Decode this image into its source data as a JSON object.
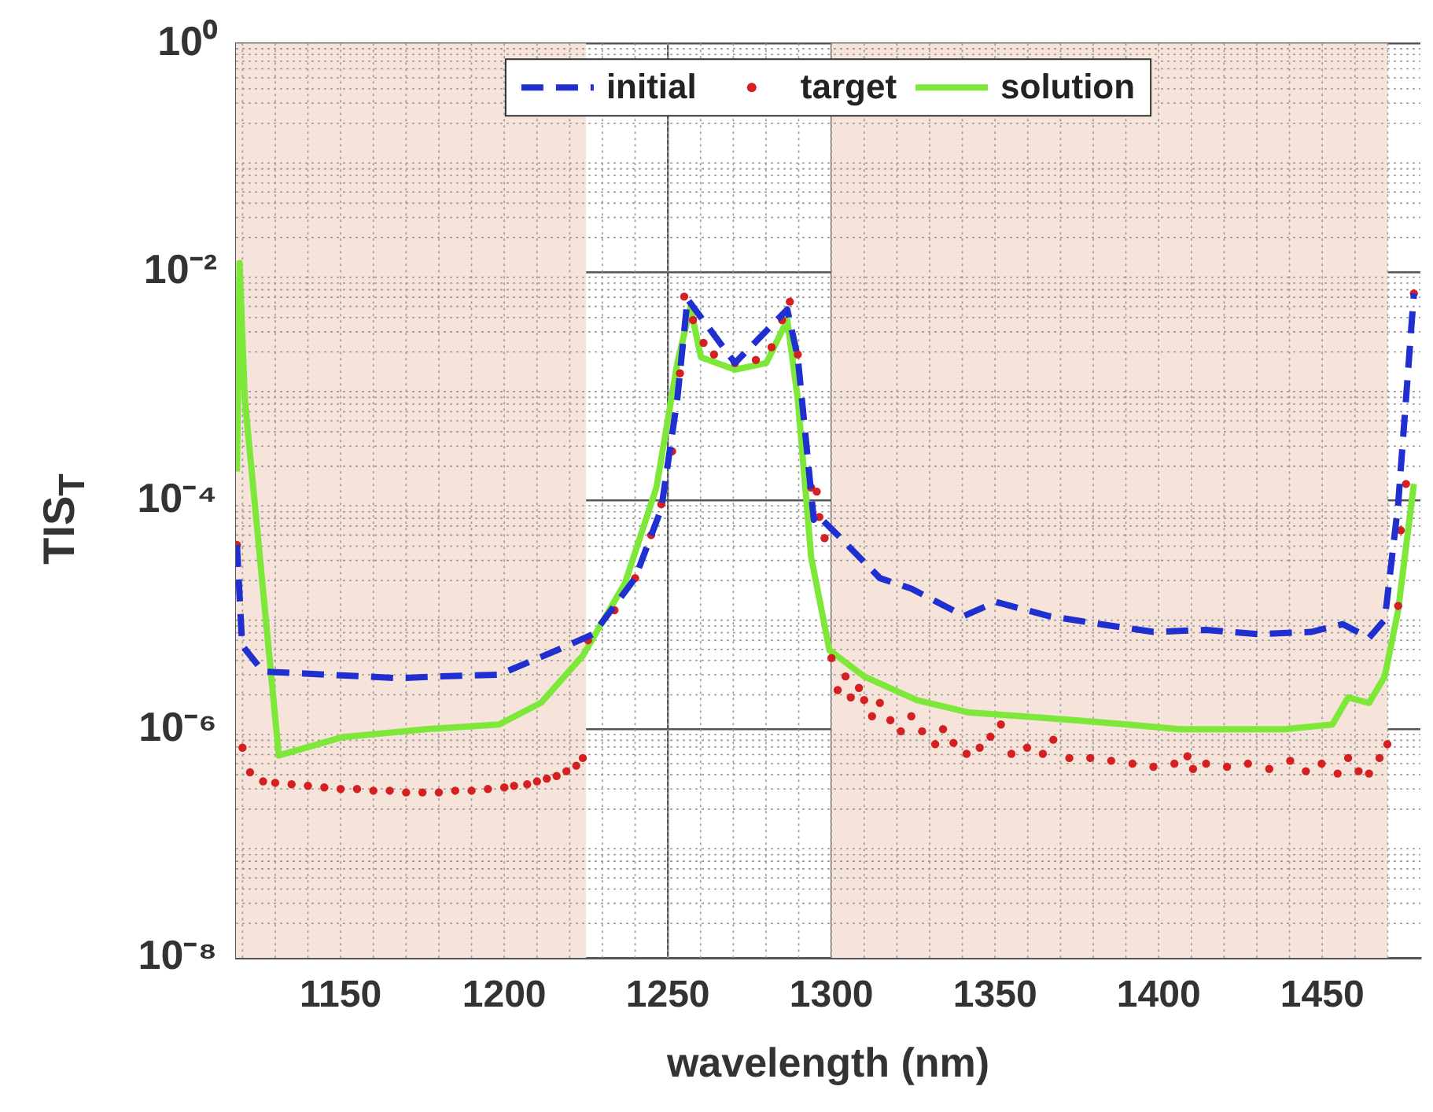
{
  "chart_data": {
    "type": "line",
    "xlabel": "wavelength (nm)",
    "ylabel": "TIS$_{T}$",
    "log": "y",
    "grid": true,
    "legend": "top",
    "xlim": [
      1118,
      1480
    ],
    "xticks": [
      1150,
      1200,
      1250,
      1300,
      1350,
      1400,
      1450
    ],
    "ylim": [
      1e-08,
      1
    ],
    "yticks": [
      {
        "value": 1e-08,
        "label": "10⁻⁸"
      },
      {
        "value": 1e-06,
        "label": "10⁻⁶"
      },
      {
        "value": 0.0001,
        "label": "10⁻⁴"
      },
      {
        "value": 0.01,
        "label": "10⁻²"
      },
      {
        "value": 1,
        "label": "10⁰"
      }
    ],
    "bands": [
      {
        "axis": "x",
        "from": 1118,
        "to": 1225,
        "color": "#f6e3da"
      },
      {
        "axis": "x",
        "from": 1300,
        "to": 1470,
        "color": "#f6e3da"
      }
    ],
    "series": [
      {
        "name": "initial",
        "type": "line",
        "line_style": "dashed",
        "marker": "none",
        "color": "#1f2fd0",
        "x": [
          1118.3,
          1119.9,
          1126.3,
          1168,
          1180.8,
          1198.4,
          1216,
          1227.2,
          1240,
          1248,
          1252.9,
          1256,
          1270.5,
          1286.5,
          1289.7,
          1294.6,
          1295.5,
          1301.9,
          1314.8,
          1324.4,
          1340.5,
          1350.2,
          1366.2,
          1382.3,
          1398.4,
          1414.5,
          1430.5,
          1446.6,
          1456.3,
          1464.3,
          1469.1,
          1473.2,
          1475.6,
          1478
        ],
        "values": [
          4.1e-05,
          5.4e-06,
          3.2e-06,
          2.8e-06,
          2.9e-06,
          3e-06,
          4.9e-06,
          6.8e-06,
          2.1e-05,
          8.5e-05,
          0.00078,
          0.0058,
          0.0016,
          0.0047,
          0.0018,
          6.8e-05,
          7.6e-05,
          5e-05,
          2.1e-05,
          1.7e-05,
          9.8e-06,
          1.3e-05,
          9.8e-06,
          8.3e-06,
          7.1e-06,
          7.4e-06,
          6.8e-06,
          7.1e-06,
          8.3e-06,
          6.3e-06,
          9.1e-06,
          9.3e-05,
          0.00078,
          0.0065
        ]
      },
      {
        "name": "target",
        "type": "scatter",
        "marker": "circle",
        "color": "#d42020",
        "x": [
          1118.3,
          1120,
          1122.3,
          1126.3,
          1130,
          1135,
          1140,
          1145,
          1150,
          1155,
          1160,
          1165,
          1170,
          1175,
          1180,
          1185,
          1190,
          1195,
          1200,
          1203,
          1207,
          1210,
          1213,
          1216,
          1219,
          1222,
          1224,
          1225.6,
          1233.7,
          1240,
          1244.9,
          1248,
          1251.3,
          1253.7,
          1255,
          1257.7,
          1260.9,
          1264.1,
          1270.5,
          1276.9,
          1281.7,
          1284.9,
          1287.3,
          1289.7,
          1293.8,
          1295.5,
          1296.3,
          1297.9,
          1300,
          1301.9,
          1304.3,
          1305.9,
          1308.4,
          1310,
          1312.4,
          1314.8,
          1318,
          1321.2,
          1324.4,
          1327.7,
          1331.7,
          1334.1,
          1337.3,
          1341.3,
          1345.3,
          1348.6,
          1351.8,
          1355,
          1359.8,
          1364.6,
          1367.8,
          1372.7,
          1379.1,
          1385.5,
          1392,
          1398.4,
          1404.8,
          1408.8,
          1410.5,
          1414.5,
          1420.9,
          1427.3,
          1433.8,
          1440.2,
          1445,
          1449.8,
          1454.7,
          1457.9,
          1461.1,
          1464.3,
          1467.5,
          1469.9,
          1473.2,
          1474,
          1475.6,
          1478
        ],
        "values": [
          4.1e-05,
          6.9e-07,
          4.2e-07,
          3.5e-07,
          3.4e-07,
          3.3e-07,
          3.2e-07,
          3.1e-07,
          3e-07,
          3e-07,
          2.9e-07,
          2.9e-07,
          2.8e-07,
          2.8e-07,
          2.8e-07,
          2.9e-07,
          2.9e-07,
          3e-07,
          3.1e-07,
          3.2e-07,
          3.3e-07,
          3.5e-07,
          3.7e-07,
          3.9e-07,
          4.3e-07,
          4.8e-07,
          5.6e-07,
          6e-06,
          1.1e-05,
          2.1e-05,
          5e-05,
          9.3e-05,
          0.00027,
          0.0013,
          0.0061,
          0.0038,
          0.0024,
          0.0019,
          0.0016,
          0.0017,
          0.0022,
          0.0038,
          0.0055,
          0.0019,
          0.00013,
          0.00012,
          7.2e-05,
          4.7e-05,
          4.2e-06,
          2.2e-06,
          2.9e-06,
          1.9e-06,
          2.3e-06,
          1.8e-06,
          1.3e-06,
          1.7e-06,
          1.2e-06,
          9.6e-07,
          1.3e-06,
          9.6e-07,
          7.4e-07,
          1e-06,
          7.6e-07,
          6.1e-07,
          6.9e-07,
          8.6e-07,
          1.1e-06,
          6.1e-07,
          6.9e-07,
          6.1e-07,
          8.1e-07,
          5.6e-07,
          5.6e-07,
          5.3e-07,
          5e-07,
          4.7e-07,
          5e-07,
          5.8e-07,
          4.5e-07,
          5e-07,
          4.7e-07,
          5e-07,
          4.5e-07,
          5.3e-07,
          4.3e-07,
          5e-07,
          4.1e-07,
          5.6e-07,
          4.3e-07,
          4.1e-07,
          5.6e-07,
          7.4e-07,
          1.2e-05,
          5.5e-05,
          0.00014,
          0.0065
        ]
      },
      {
        "name": "solution",
        "type": "line",
        "line_style": "solid",
        "marker": "none",
        "color": "#7ee83a",
        "x": [
          1118.3,
          1119.1,
          1120.7,
          1131.1,
          1150.3,
          1176,
          1198.4,
          1211.2,
          1224,
          1236.9,
          1246.5,
          1252.9,
          1256.9,
          1260.1,
          1270.5,
          1280.1,
          1286.5,
          1289.7,
          1293.8,
          1299.4,
          1300.3,
          1310,
          1326,
          1342.1,
          1358.2,
          1374.3,
          1390.4,
          1406.4,
          1422.5,
          1438.6,
          1453.1,
          1457.9,
          1464.3,
          1469.1,
          1473.2,
          1478
        ],
        "values": [
          0.00018,
          0.012,
          0.00078,
          5.9e-07,
          8.5e-07,
          1e-06,
          1.1e-06,
          1.7e-06,
          4.4e-06,
          1.9e-05,
          0.00013,
          0.0016,
          0.0049,
          0.0018,
          0.0014,
          0.0016,
          0.0038,
          0.00078,
          3.2e-05,
          4.9e-06,
          4.7e-06,
          2.9e-06,
          1.8e-06,
          1.4e-06,
          1.3e-06,
          1.2e-06,
          1.1e-06,
          1e-06,
          1e-06,
          1e-06,
          1.1e-06,
          1.9e-06,
          1.7e-06,
          2.9e-06,
          1.1e-05,
          0.00014
        ]
      }
    ]
  }
}
